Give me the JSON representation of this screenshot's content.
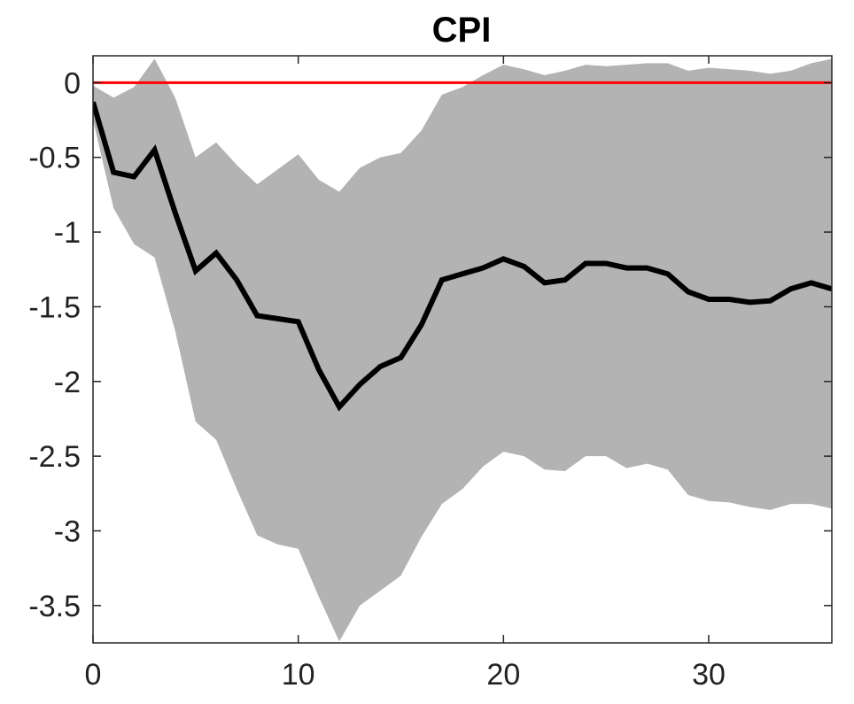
{
  "chart_data": {
    "type": "area",
    "title": "CPI",
    "xlabel": "",
    "ylabel": "",
    "xlim": [
      0,
      36
    ],
    "ylim": [
      -3.75,
      0.18
    ],
    "x_ticks": [
      0,
      10,
      20,
      30
    ],
    "y_ticks": [
      0,
      -0.5,
      -1,
      -1.5,
      -2,
      -2.5,
      -3,
      -3.5
    ],
    "x_tick_labels": [
      "0",
      "10",
      "20",
      "30"
    ],
    "y_tick_labels": [
      "0",
      "-0.5",
      "-1",
      "-1.5",
      "-2",
      "-2.5",
      "-3",
      "-3.5"
    ],
    "grid": false,
    "legend": "none",
    "x": [
      0,
      1,
      2,
      3,
      4,
      5,
      6,
      7,
      8,
      9,
      10,
      11,
      12,
      13,
      14,
      15,
      16,
      17,
      18,
      19,
      20,
      21,
      22,
      23,
      24,
      25,
      26,
      27,
      28,
      29,
      30,
      31,
      32,
      33,
      34,
      35,
      36
    ],
    "reference_line": {
      "y": 0,
      "color": "#ff0000"
    },
    "series": [
      {
        "role": "median",
        "color": "#000000",
        "values": [
          -0.13,
          -0.6,
          -0.63,
          -0.45,
          -0.87,
          -1.26,
          -1.14,
          -1.32,
          -1.56,
          -1.58,
          -1.6,
          -1.92,
          -2.17,
          -2.02,
          -1.9,
          -1.84,
          -1.62,
          -1.32,
          -1.28,
          -1.24,
          -1.18,
          -1.23,
          -1.34,
          -1.32,
          -1.21,
          -1.21,
          -1.24,
          -1.24,
          -1.28,
          -1.4,
          -1.45,
          -1.45,
          -1.47,
          -1.46,
          -1.38,
          -1.34,
          -1.38
        ]
      },
      {
        "role": "upper",
        "color": "#b3b3b3",
        "values": [
          -0.02,
          -0.1,
          -0.03,
          0.16,
          -0.1,
          -0.5,
          -0.4,
          -0.55,
          -0.68,
          -0.58,
          -0.48,
          -0.65,
          -0.73,
          -0.57,
          -0.5,
          -0.47,
          -0.32,
          -0.08,
          -0.03,
          0.05,
          0.12,
          0.09,
          0.05,
          0.08,
          0.12,
          0.11,
          0.12,
          0.13,
          0.13,
          0.08,
          0.1,
          0.09,
          0.08,
          0.06,
          0.08,
          0.13,
          0.16
        ]
      },
      {
        "role": "lower",
        "color": "#b3b3b3",
        "values": [
          -0.25,
          -0.84,
          -1.08,
          -1.17,
          -1.66,
          -2.27,
          -2.39,
          -2.72,
          -3.03,
          -3.09,
          -3.12,
          -3.44,
          -3.74,
          -3.5,
          -3.4,
          -3.3,
          -3.04,
          -2.82,
          -2.72,
          -2.57,
          -2.47,
          -2.5,
          -2.59,
          -2.6,
          -2.5,
          -2.5,
          -2.58,
          -2.55,
          -2.59,
          -2.76,
          -2.8,
          -2.81,
          -2.84,
          -2.86,
          -2.82,
          -2.82,
          -2.85
        ]
      }
    ]
  }
}
